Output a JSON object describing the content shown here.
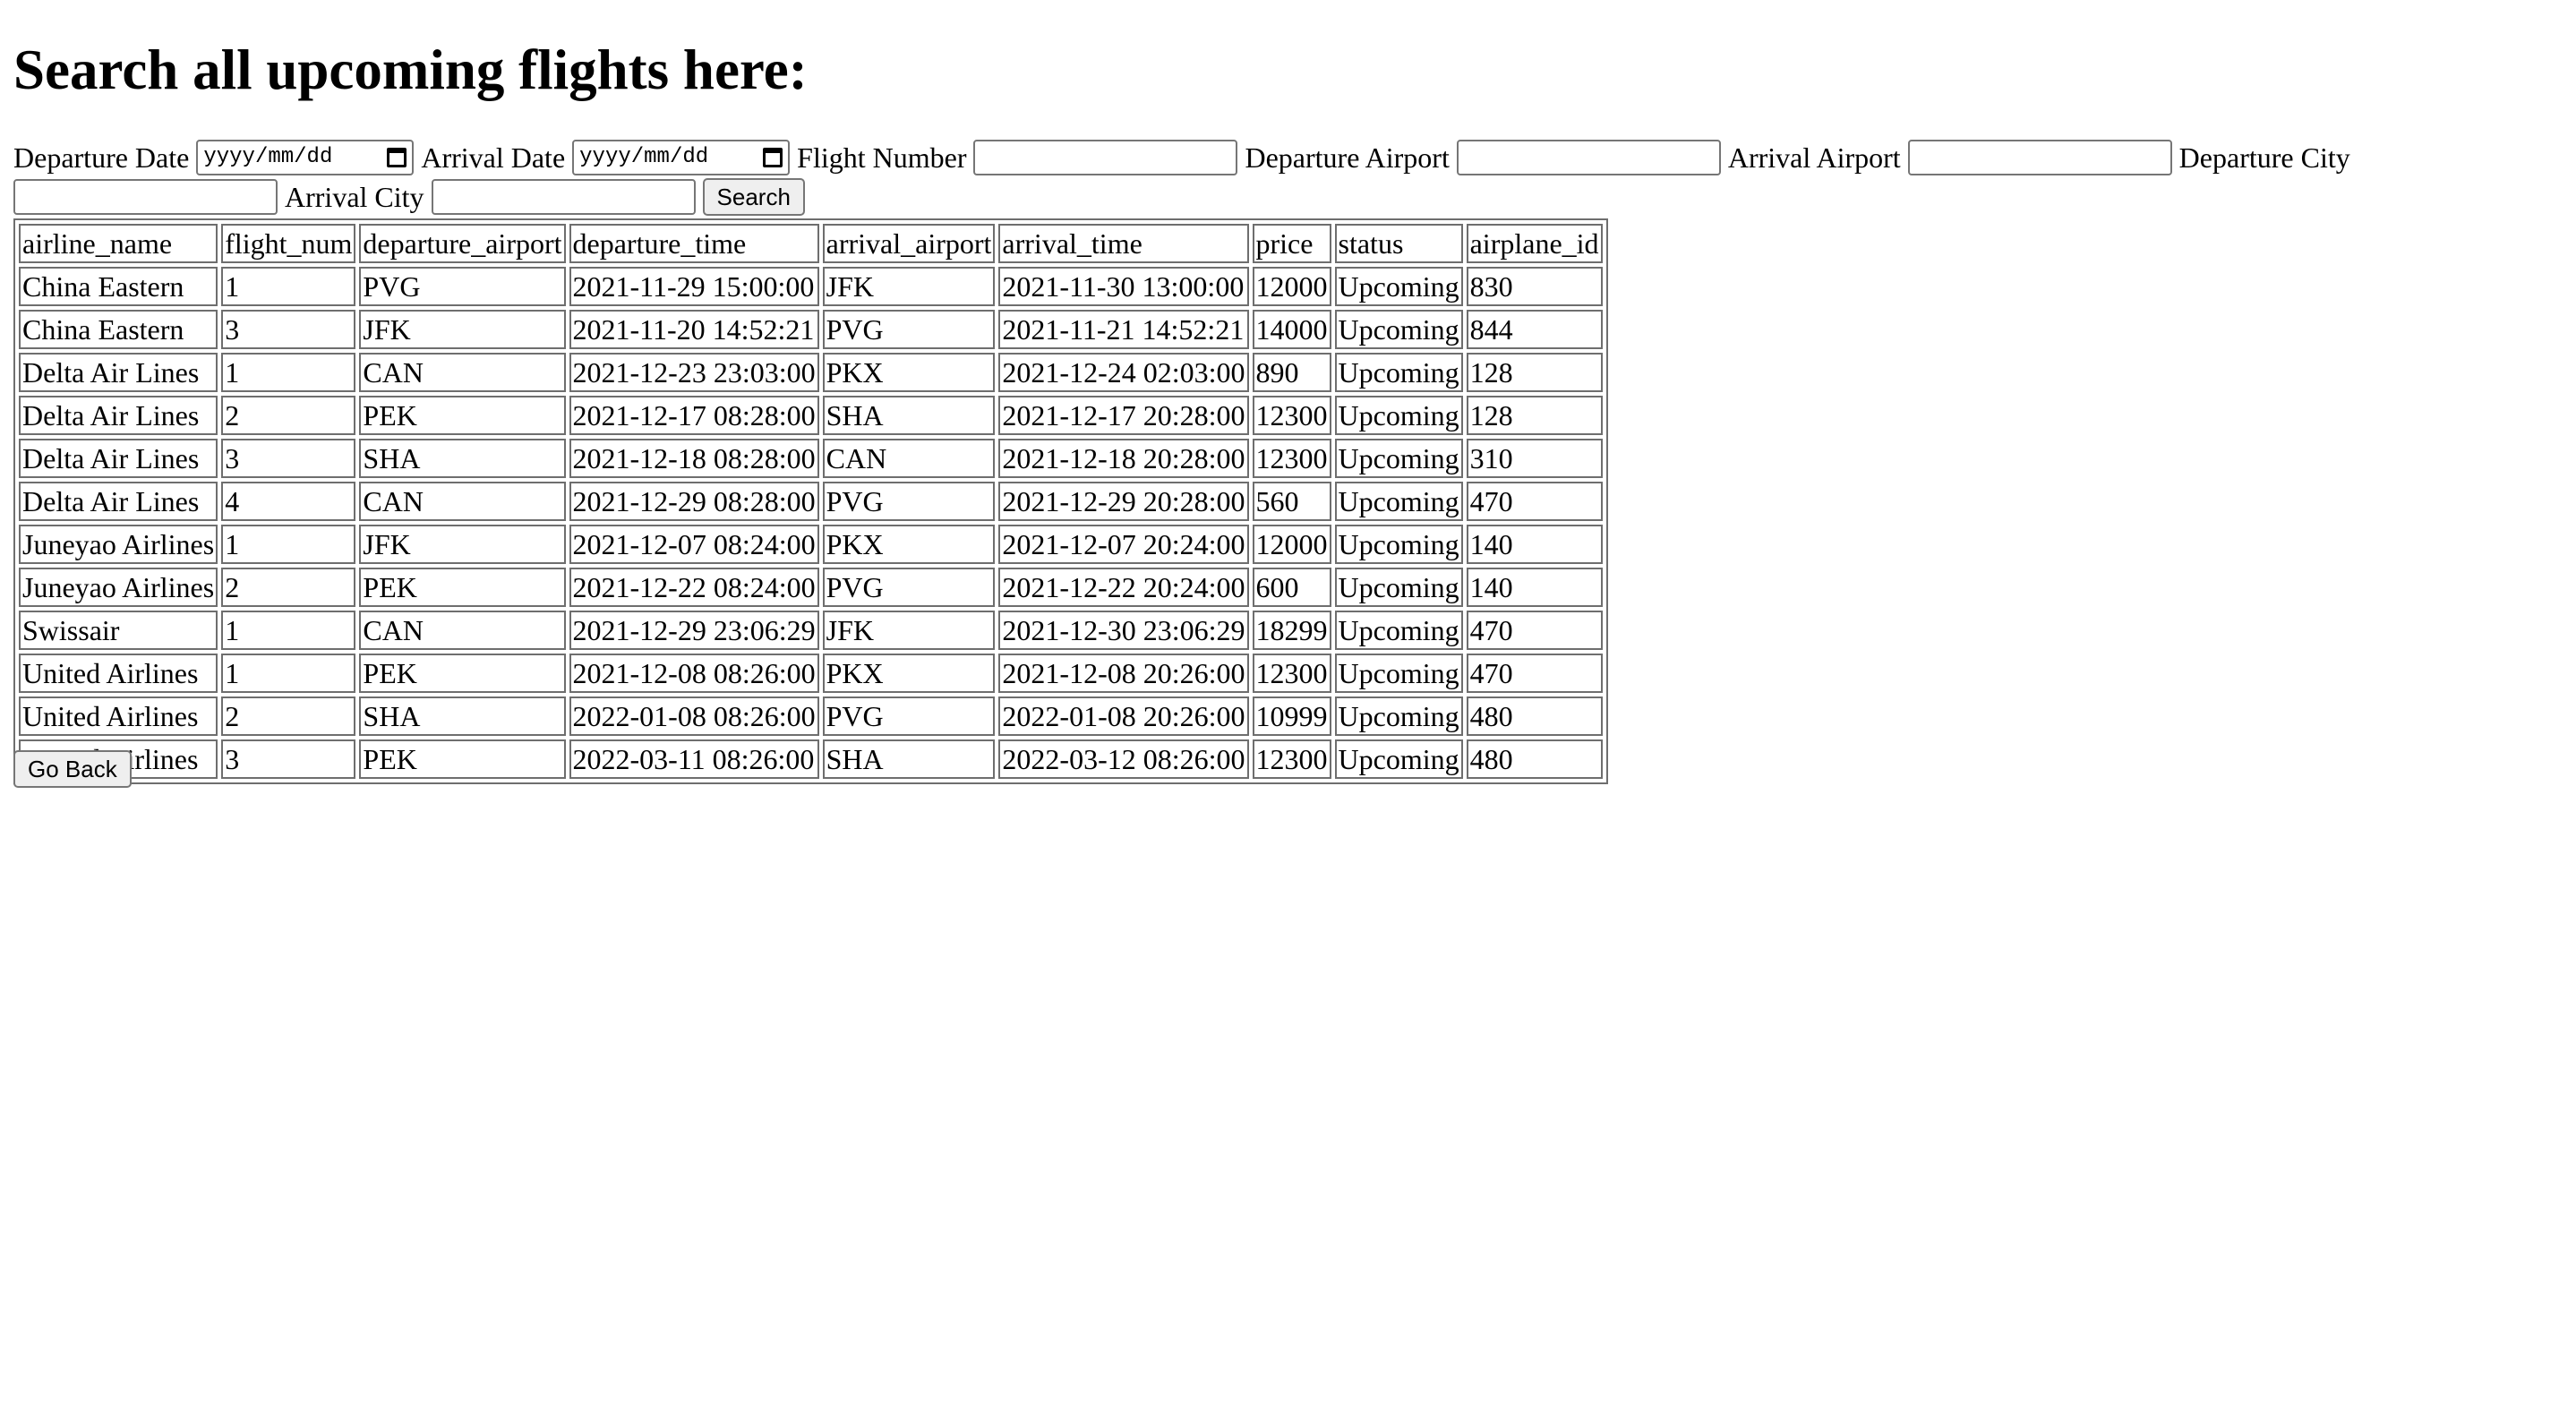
{
  "heading": "Search all upcoming flights here:",
  "form": {
    "departure_date_label": "Departure Date",
    "departure_date_placeholder": "yyyy/mm/dd",
    "arrival_date_label": "Arrival Date",
    "arrival_date_placeholder": "yyyy/mm/dd",
    "flight_number_label": "Flight Number",
    "flight_number_value": "",
    "departure_airport_label": "Departure Airport",
    "departure_airport_value": "",
    "arrival_airport_label": "Arrival Airport",
    "arrival_airport_value": "",
    "departure_city_label": "Departure City",
    "departure_city_value": "",
    "arrival_city_label": "Arrival City",
    "arrival_city_value": "",
    "search_button": "Search"
  },
  "table": {
    "columns": [
      "airline_name",
      "flight_num",
      "departure_airport",
      "departure_time",
      "arrival_airport",
      "arrival_time",
      "price",
      "status",
      "airplane_id"
    ],
    "rows": [
      [
        "China Eastern",
        "1",
        "PVG",
        "2021-11-29 15:00:00",
        "JFK",
        "2021-11-30 13:00:00",
        "12000",
        "Upcoming",
        "830"
      ],
      [
        "China Eastern",
        "3",
        "JFK",
        "2021-11-20 14:52:21",
        "PVG",
        "2021-11-21 14:52:21",
        "14000",
        "Upcoming",
        "844"
      ],
      [
        "Delta Air Lines",
        "1",
        "CAN",
        "2021-12-23 23:03:00",
        "PKX",
        "2021-12-24 02:03:00",
        "890",
        "Upcoming",
        "128"
      ],
      [
        "Delta Air Lines",
        "2",
        "PEK",
        "2021-12-17 08:28:00",
        "SHA",
        "2021-12-17 20:28:00",
        "12300",
        "Upcoming",
        "128"
      ],
      [
        "Delta Air Lines",
        "3",
        "SHA",
        "2021-12-18 08:28:00",
        "CAN",
        "2021-12-18 20:28:00",
        "12300",
        "Upcoming",
        "310"
      ],
      [
        "Delta Air Lines",
        "4",
        "CAN",
        "2021-12-29 08:28:00",
        "PVG",
        "2021-12-29 20:28:00",
        "560",
        "Upcoming",
        "470"
      ],
      [
        "Juneyao Airlines",
        "1",
        "JFK",
        "2021-12-07 08:24:00",
        "PKX",
        "2021-12-07 20:24:00",
        "12000",
        "Upcoming",
        "140"
      ],
      [
        "Juneyao Airlines",
        "2",
        "PEK",
        "2021-12-22 08:24:00",
        "PVG",
        "2021-12-22 20:24:00",
        "600",
        "Upcoming",
        "140"
      ],
      [
        "Swissair",
        "1",
        "CAN",
        "2021-12-29 23:06:29",
        "JFK",
        "2021-12-30 23:06:29",
        "18299",
        "Upcoming",
        "470"
      ],
      [
        "United Airlines",
        "1",
        "PEK",
        "2021-12-08 08:26:00",
        "PKX",
        "2021-12-08 20:26:00",
        "12300",
        "Upcoming",
        "470"
      ],
      [
        "United Airlines",
        "2",
        "SHA",
        "2022-01-08 08:26:00",
        "PVG",
        "2022-01-08 20:26:00",
        "10999",
        "Upcoming",
        "480"
      ],
      [
        "United Airlines",
        "3",
        "PEK",
        "2022-03-11 08:26:00",
        "SHA",
        "2022-03-12 08:26:00",
        "12300",
        "Upcoming",
        "480"
      ]
    ]
  },
  "go_back_button": "Go Back",
  "icons": {
    "departure_date_picker": "calendar-icon",
    "arrival_date_picker": "calendar-icon"
  }
}
